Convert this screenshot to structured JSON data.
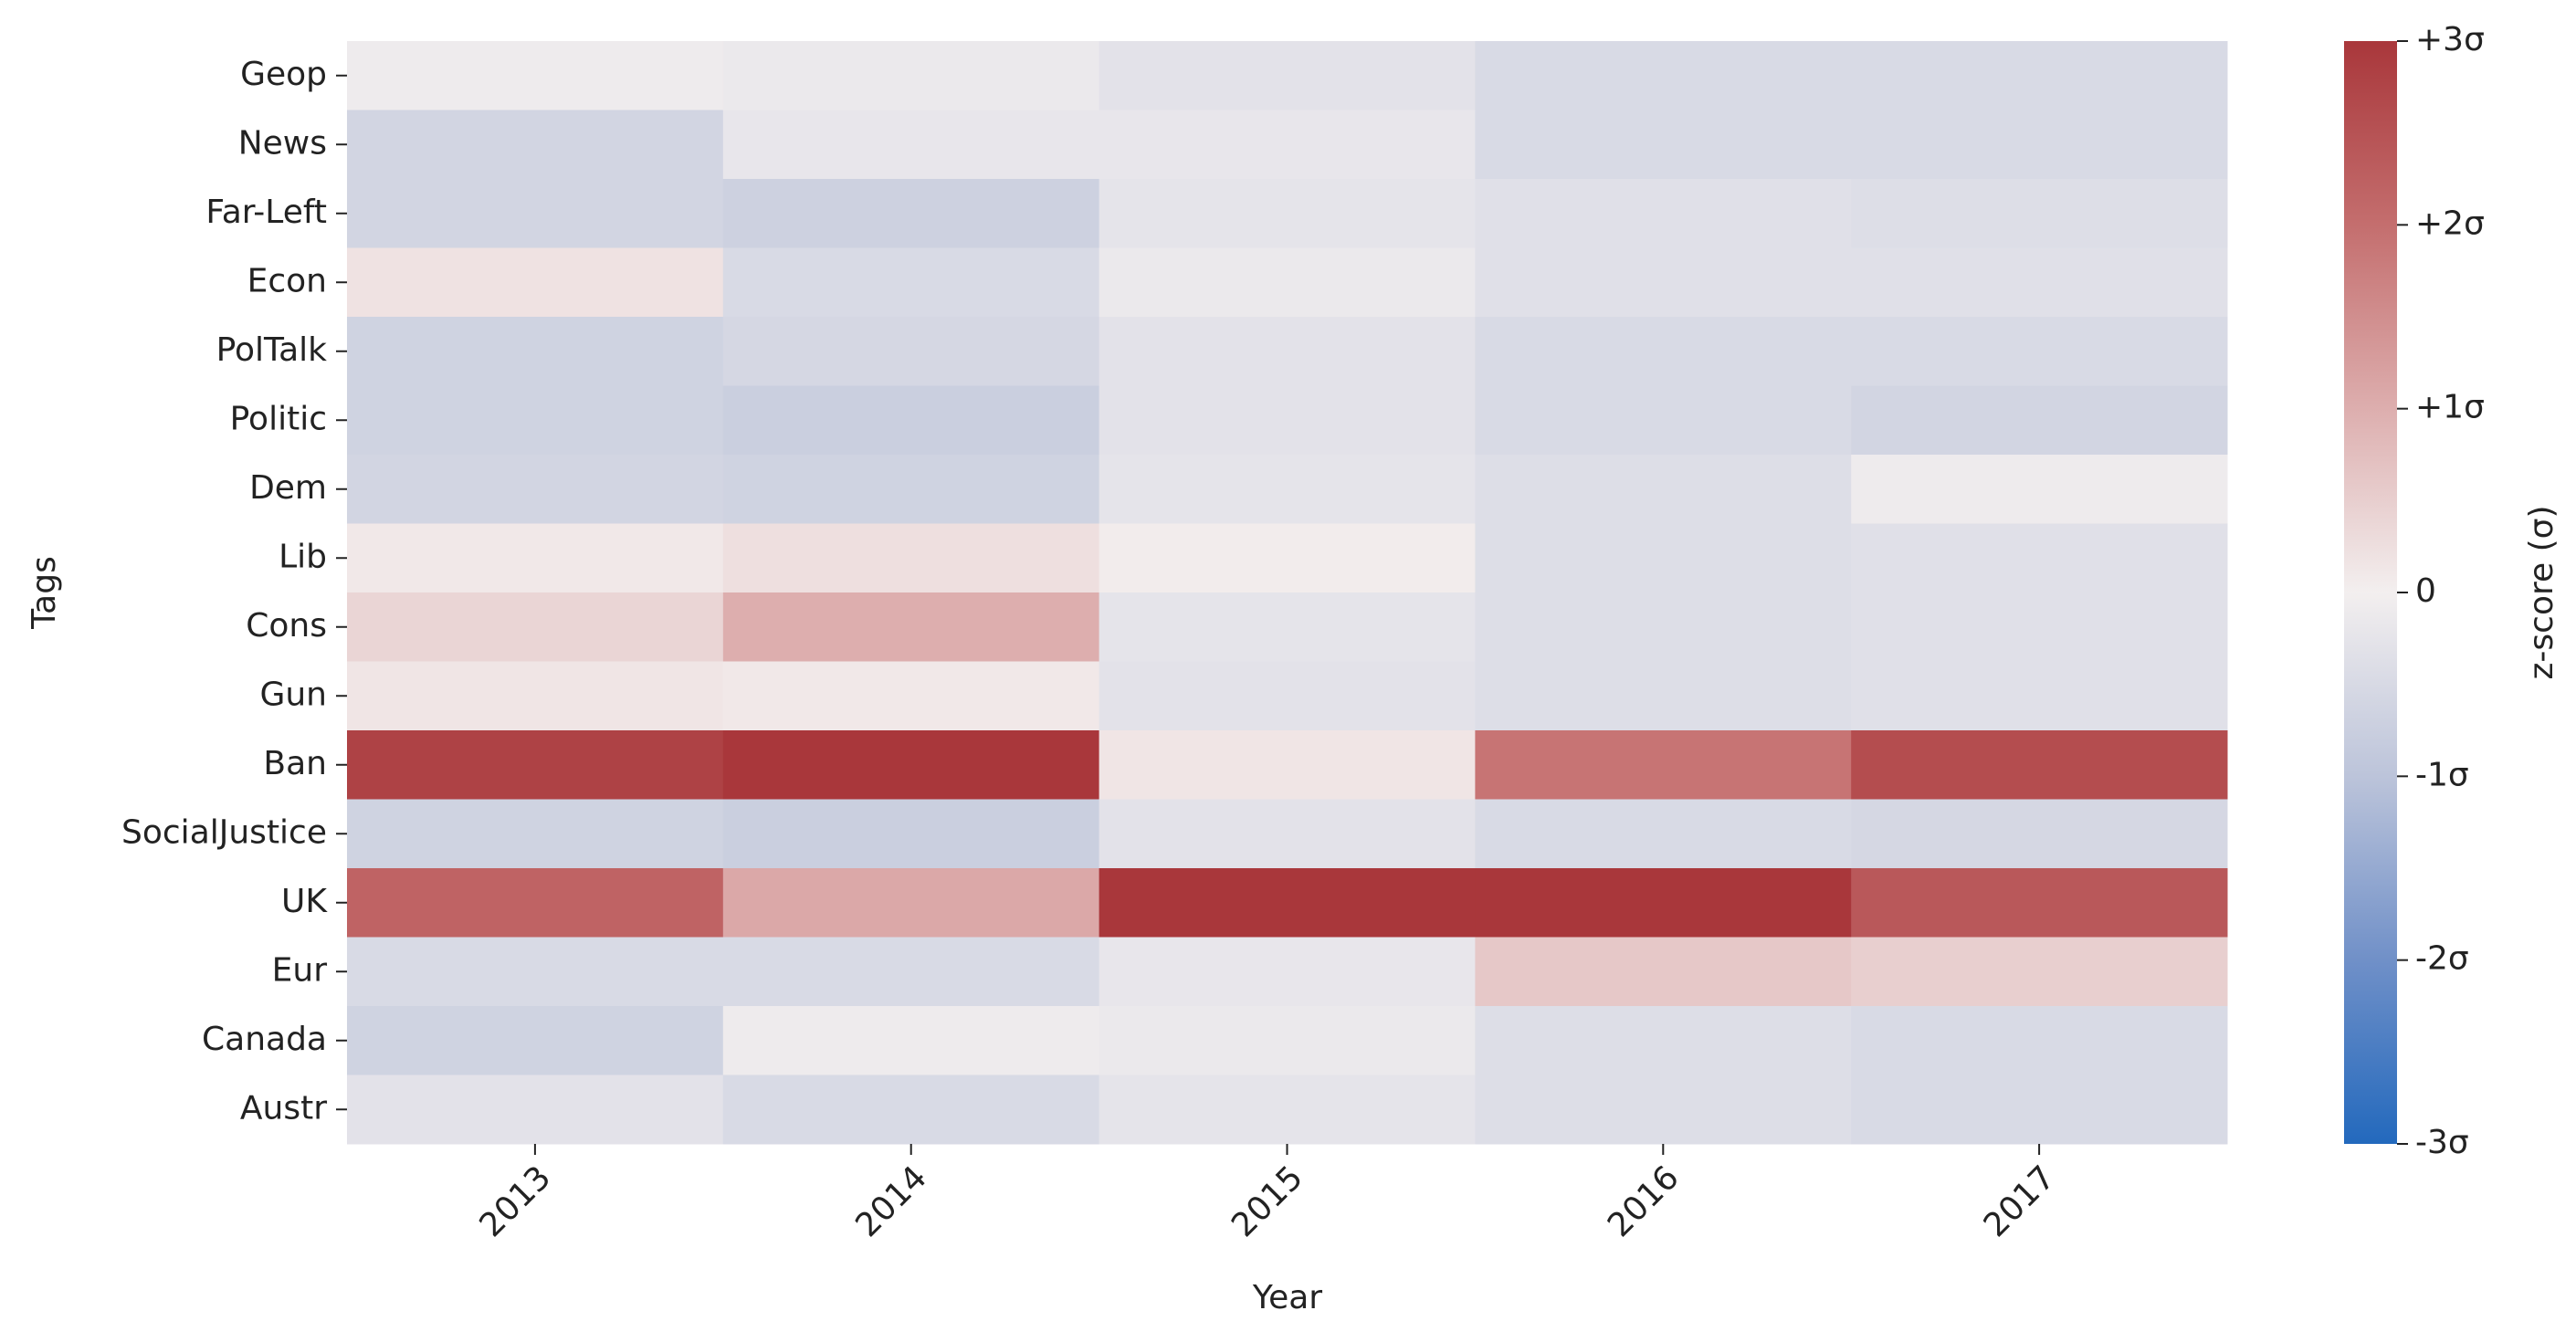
{
  "chart_data": {
    "type": "heatmap",
    "xlabel": "Year",
    "ylabel": "Tags",
    "colorbar_label": "z-score (σ)",
    "x": [
      "2013",
      "2014",
      "2015",
      "2016",
      "2017"
    ],
    "y": [
      "Geop",
      "News",
      "Far-Left",
      "Econ",
      "PolTalk",
      "Politic",
      "Dem",
      "Lib",
      "Cons",
      "Gun",
      "Ban",
      "SocialJustice",
      "UK",
      "Eur",
      "Canada",
      "Austr"
    ],
    "values": [
      [
        -0.1,
        -0.15,
        -0.3,
        -0.5,
        -0.5
      ],
      [
        -0.6,
        -0.2,
        -0.2,
        -0.5,
        -0.5
      ],
      [
        -0.6,
        -0.7,
        -0.25,
        -0.35,
        -0.4
      ],
      [
        0.2,
        -0.5,
        -0.15,
        -0.35,
        -0.35
      ],
      [
        -0.65,
        -0.55,
        -0.3,
        -0.5,
        -0.5
      ],
      [
        -0.65,
        -0.75,
        -0.3,
        -0.5,
        -0.6
      ],
      [
        -0.6,
        -0.65,
        -0.25,
        -0.4,
        -0.1
      ],
      [
        0.1,
        0.25,
        0.05,
        -0.4,
        -0.35
      ],
      [
        0.4,
        1.0,
        -0.25,
        -0.4,
        -0.35
      ],
      [
        0.15,
        0.1,
        -0.3,
        -0.4,
        -0.35
      ],
      [
        2.8,
        3.0,
        0.15,
        1.9,
        2.6
      ],
      [
        -0.65,
        -0.75,
        -0.3,
        -0.5,
        -0.55
      ],
      [
        2.2,
        1.1,
        3.0,
        3.0,
        2.4
      ],
      [
        -0.5,
        -0.5,
        -0.2,
        0.6,
        0.5
      ],
      [
        -0.65,
        -0.1,
        -0.15,
        -0.4,
        -0.5
      ],
      [
        -0.3,
        -0.5,
        -0.25,
        -0.4,
        -0.5
      ]
    ],
    "colorscale": [
      "#2369bd",
      "#7090c8",
      "#bcc4da",
      "#f3efef",
      "#ddaeae",
      "#c46e6e",
      "#a9373b"
    ],
    "clim": [
      -3,
      3
    ],
    "cticks": [
      {
        "value": 3,
        "label": "+3σ"
      },
      {
        "value": 2,
        "label": "+2σ"
      },
      {
        "value": 1,
        "label": "+1σ"
      },
      0,
      {
        "value": -1,
        "label": "-1σ"
      },
      {
        "value": -2,
        "label": "-2σ"
      },
      {
        "value": -3,
        "label": "-3σ"
      }
    ]
  }
}
